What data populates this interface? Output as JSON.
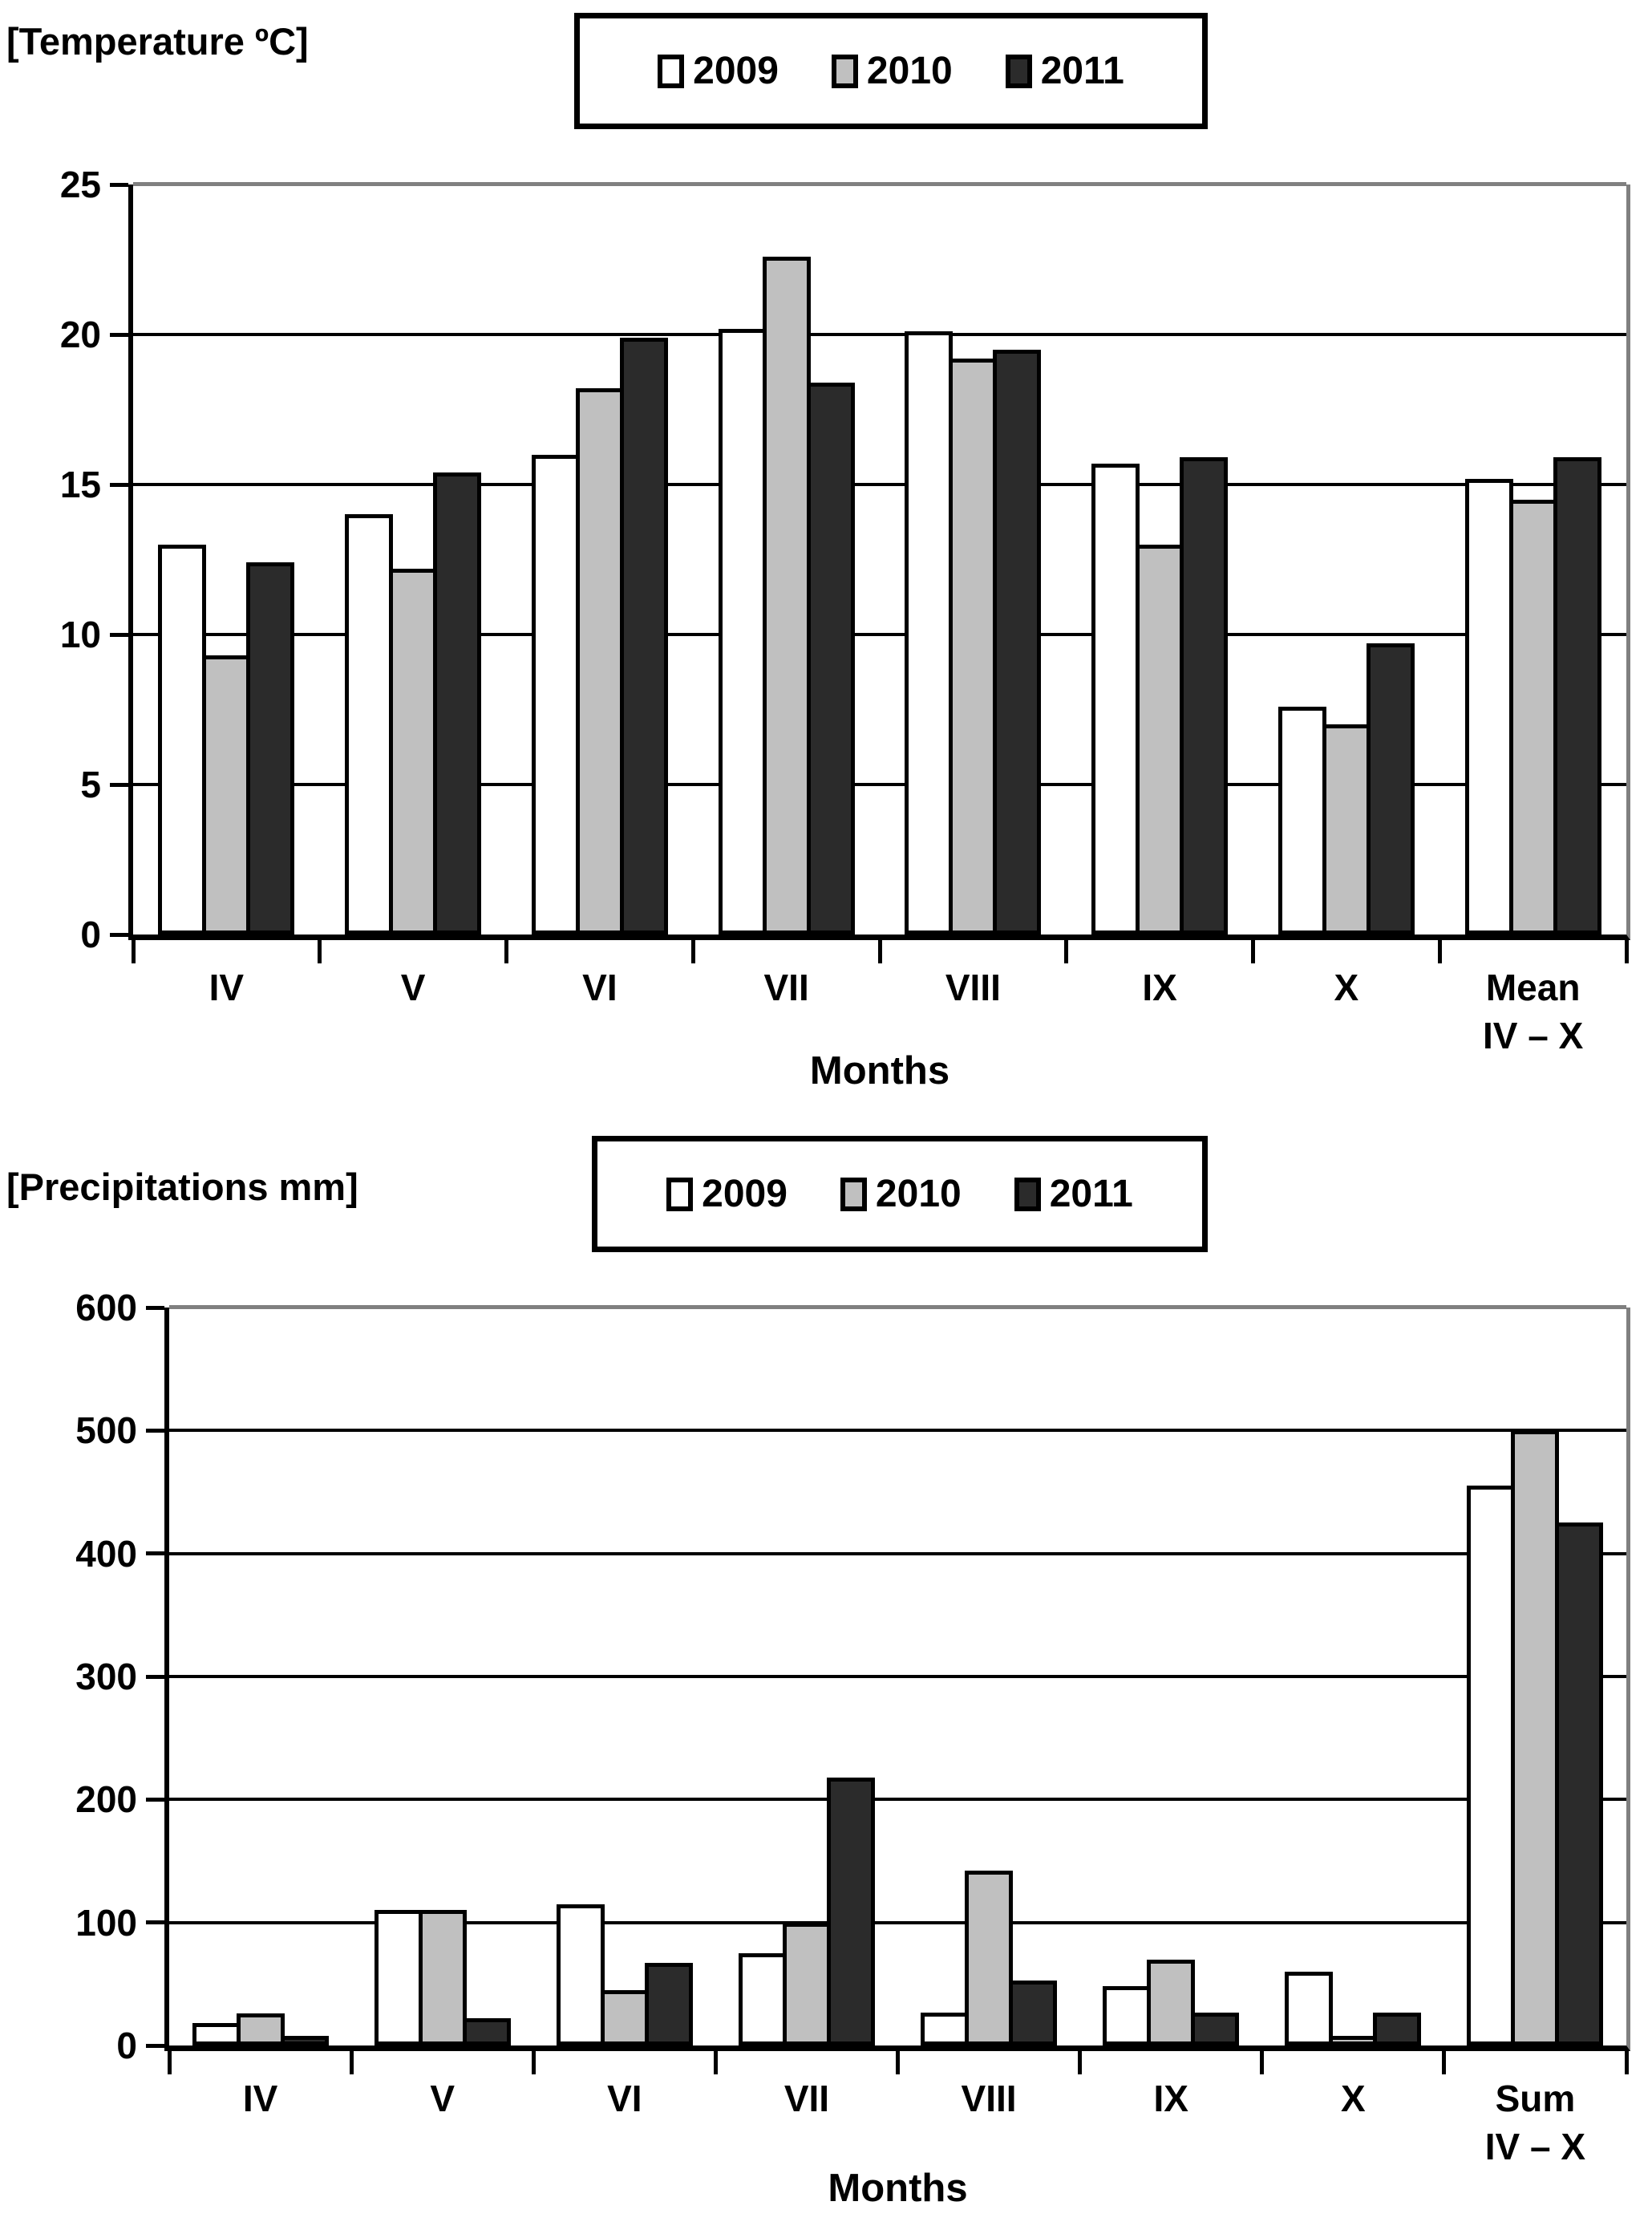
{
  "colors": {
    "series": {
      "2009": "#ffffff",
      "2010": "#c0c0c0",
      "2011": "#2b2b2b"
    },
    "bar_border": "#000000",
    "gridline": "#000000",
    "plot_outer_border": "#808080",
    "axis": "#000000",
    "text": "#000000",
    "background": "#ffffff"
  },
  "chart_data": [
    {
      "type": "bar",
      "title": "[Temperature ºC]",
      "xlabel": "Months",
      "categories": [
        "IV",
        "V",
        "VI",
        "VII",
        "VIII",
        "IX",
        "X",
        "Mean\nIV – X"
      ],
      "series": [
        {
          "name": "2009",
          "values": [
            13.0,
            14.0,
            16.0,
            20.2,
            20.1,
            15.7,
            7.6,
            15.2
          ]
        },
        {
          "name": "2010",
          "values": [
            9.3,
            12.2,
            18.2,
            22.6,
            19.2,
            13.0,
            7.0,
            14.5
          ]
        },
        {
          "name": "2011",
          "values": [
            12.4,
            15.4,
            19.9,
            18.4,
            19.5,
            15.9,
            9.7,
            15.9
          ]
        }
      ],
      "ylim": [
        0,
        25
      ],
      "ytick_step": 5,
      "ytick_labels": [
        "0",
        "5",
        "10",
        "15",
        "20",
        "25"
      ],
      "legend": [
        "2009",
        "2010",
        "2011"
      ],
      "legend_position": "top",
      "grid": true
    },
    {
      "type": "bar",
      "title": "[Precipitations mm]",
      "xlabel": "Months",
      "categories": [
        "IV",
        "V",
        "VI",
        "VII",
        "VIII",
        "IX",
        "X",
        "Sum\nIV – X"
      ],
      "series": [
        {
          "name": "2009",
          "values": [
            18,
            110,
            115,
            75,
            27,
            48,
            60,
            455
          ]
        },
        {
          "name": "2010",
          "values": [
            26,
            110,
            45,
            100,
            142,
            70,
            8,
            500
          ]
        },
        {
          "name": "2011",
          "values": [
            8,
            22,
            67,
            218,
            53,
            27,
            27,
            425
          ]
        }
      ],
      "ylim": [
        0,
        600
      ],
      "ytick_step": 100,
      "ytick_labels": [
        "0",
        "100",
        "200",
        "300",
        "400",
        "500",
        "600"
      ],
      "legend": [
        "2009",
        "2010",
        "2011"
      ],
      "legend_position": "top",
      "grid": true
    }
  ]
}
